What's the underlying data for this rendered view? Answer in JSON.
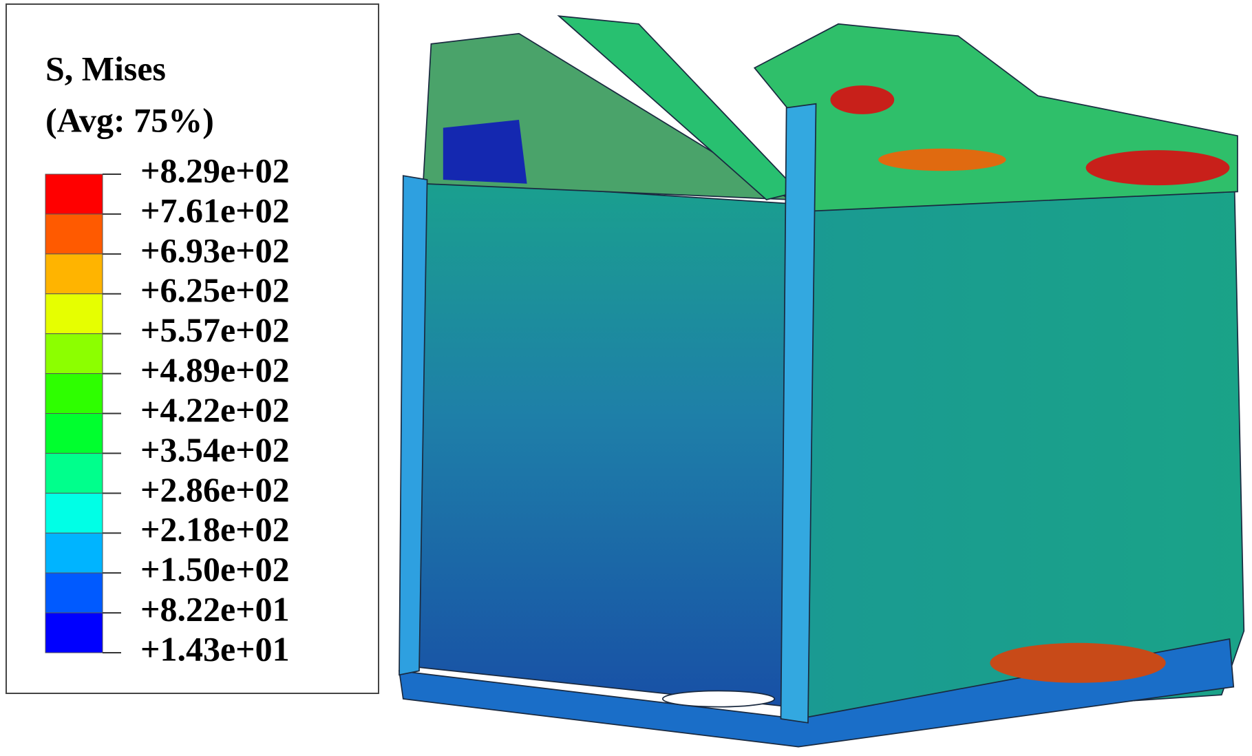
{
  "legend": {
    "title": "S, Mises",
    "subtitle": "(Avg: 75%)",
    "labels": [
      "+8.29e+02",
      "+7.61e+02",
      "+6.93e+02",
      "+6.25e+02",
      "+5.57e+02",
      "+4.89e+02",
      "+4.22e+02",
      "+3.54e+02",
      "+2.86e+02",
      "+2.18e+02",
      "+1.50e+02",
      "+8.22e+01",
      "+1.43e+01"
    ],
    "colors": [
      "#ff0000",
      "#ff5a00",
      "#ffb400",
      "#e6ff00",
      "#8cff00",
      "#2eff00",
      "#00ff2e",
      "#00ff8c",
      "#00ffe6",
      "#00b4ff",
      "#005aff",
      "#0000ff"
    ]
  }
}
